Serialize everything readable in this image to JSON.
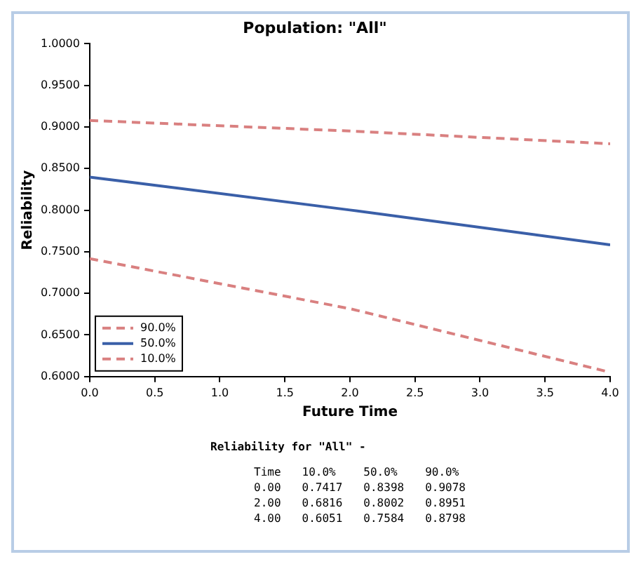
{
  "chart_data": {
    "type": "line",
    "title": "Population: \"All\"",
    "xlabel": "Future Time",
    "ylabel": "Reliability",
    "x": [
      0,
      2,
      4
    ],
    "series": [
      {
        "name": "90.0%",
        "color": "#d98080",
        "line_style": "dashed",
        "values": [
          0.9078,
          0.8951,
          0.8798
        ]
      },
      {
        "name": "50.0%",
        "color": "#3a5fa8",
        "line_style": "solid",
        "values": [
          0.8398,
          0.8002,
          0.7584
        ]
      },
      {
        "name": "10.0%",
        "color": "#d98080",
        "line_style": "dashed",
        "values": [
          0.7417,
          0.6816,
          0.6051
        ]
      }
    ],
    "xlim": [
      0,
      4
    ],
    "xticks": [
      {
        "value": 0,
        "label": "0.0"
      },
      {
        "value": 0.5,
        "label": "0.5"
      },
      {
        "value": 1,
        "label": "1.0"
      },
      {
        "value": 1.5,
        "label": "1.5"
      },
      {
        "value": 2,
        "label": "2.0"
      },
      {
        "value": 2.5,
        "label": "2.5"
      },
      {
        "value": 3,
        "label": "3.0"
      },
      {
        "value": 3.5,
        "label": "3.5"
      },
      {
        "value": 4,
        "label": "4.0"
      }
    ],
    "ylim": [
      0.6,
      1
    ],
    "yticks": [
      {
        "value": 0.6,
        "label": "0.6000"
      },
      {
        "value": 0.65,
        "label": "0.6500"
      },
      {
        "value": 0.7,
        "label": "0.7000"
      },
      {
        "value": 0.75,
        "label": "0.7500"
      },
      {
        "value": 0.8,
        "label": "0.8000"
      },
      {
        "value": 0.85,
        "label": "0.8500"
      },
      {
        "value": 0.9,
        "label": "0.9000"
      },
      {
        "value": 0.95,
        "label": "0.9500"
      },
      {
        "value": 1,
        "label": "1.0000"
      }
    ],
    "grid": false,
    "legend": "bottom left",
    "marker": "none",
    "annotations": [
      "Reliability for \"All\" -",
      "Time",
      "0.00",
      "0.7417",
      "0.8398",
      "0.9078",
      "2.00",
      "0.6816",
      "0.8002",
      "0.8951",
      "4.00",
      "0.6051",
      "0.7584",
      "0.8798"
    ]
  }
}
